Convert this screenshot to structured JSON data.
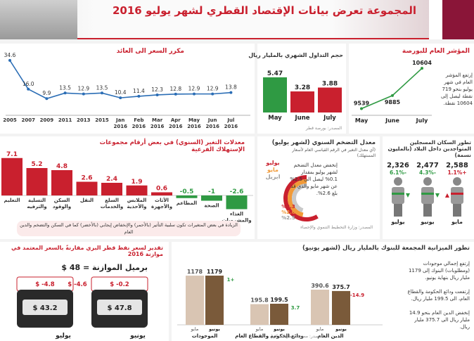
{
  "header": {
    "title": "المجموعة تعرض بيانات الإقتصاد القطري لشهر يوليو 2016"
  },
  "pe": {
    "title": "مكرر السعر الى العائد",
    "points": [
      {
        "x": "2005",
        "y": null
      },
      {
        "x": "2007",
        "y": 34.6
      },
      {
        "x": "2009",
        "y": 16.0
      },
      {
        "x": "2011",
        "y": 9.9
      },
      {
        "x": "2013",
        "y": 13.5
      },
      {
        "x": "2015",
        "y": 12.9
      },
      {
        "x": "Jan 2016",
        "y": 13.5
      },
      {
        "x": "Feb 2016",
        "y": 10.4
      },
      {
        "x": "Mar 2016",
        "y": 11.4
      },
      {
        "x": "Apr 2016",
        "y": 12.3
      },
      {
        "x": "May 2016",
        "y": 12.8
      },
      {
        "x": "Jun 2016",
        "y": 12.9
      },
      {
        "x": "Jul 2016",
        "y": 12.9
      },
      {
        "x": "",
        "y": 13.8
      }
    ],
    "xlabels": [
      "2005",
      "2007",
      "2009",
      "2011",
      "2013",
      "2015",
      "Jan\n2016",
      "Feb\n2016",
      "Mar\n2016",
      "Apr\n2016",
      "May\n2016",
      "Jun\n2016",
      "Jul\n2016"
    ],
    "labels": [
      "34.6",
      "16.0",
      "9.9",
      "13.5",
      "12.9",
      "13.5",
      "10.4",
      "11.4",
      "12.3",
      "12.8",
      "12.9",
      "12.9",
      "13.8"
    ]
  },
  "volume": {
    "title": "حجم التداول الشهري بالمليار ريال",
    "source": "المصدر: بورصة قطر",
    "bars": [
      {
        "label": "May",
        "value": 5.47,
        "color": "#2f9a43"
      },
      {
        "label": "June",
        "value": 3.28,
        "color": "#c9202e"
      },
      {
        "label": "July",
        "value": 3.88,
        "color": "#c9202e"
      }
    ]
  },
  "index": {
    "title": "المؤشر العام للبورصة",
    "points": [
      {
        "label": "May",
        "value": 9539
      },
      {
        "label": "June",
        "value": 9885
      },
      {
        "label": "July",
        "value": 10604
      }
    ],
    "text": "إرتفع المؤشر العام في شهر يوليو بنحو 719 نقطة ليصل إلى 10604 نقطة."
  },
  "cpi_changes": {
    "title": "معدلات التغير (السنوي) في بعض أرقام مجموعات الإستهلاك الفرعية",
    "bars": [
      {
        "label": "التعليم",
        "value": 7.1
      },
      {
        "label": "التسلية والترفيه",
        "value": 5.2
      },
      {
        "label": "السكن والوقود",
        "value": 4.8
      },
      {
        "label": "النقل",
        "value": 2.6
      },
      {
        "label": "السلع والخدمات",
        "value": 2.4
      },
      {
        "label": "الملابس والأحذية",
        "value": 1.9
      },
      {
        "label": "الأثاث والأجهزة",
        "value": 0.6
      },
      {
        "label": "المطاعم",
        "value": -0.5
      },
      {
        "label": "الصحة",
        "value": -1
      },
      {
        "label": "الغذاء والمشروبات",
        "value": -2.6
      }
    ],
    "note": "الزيادة في بعض المتغيرات تكون سلبية التأثير (بالأحمر) والإنخفاض إيجابي (بالأخضر) كما في السكن والتضخم والدين العام"
  },
  "inflation": {
    "title": "معدل التضخم السنوي (لشهر يوليو)",
    "subtitle": "(أي معدل التغير في الرقم القياسي العام لأسعار المستهلك)",
    "legend": [
      "يوليو",
      "مايو",
      "ابريل"
    ],
    "values": [
      "%3.3",
      "%2.6",
      "%2.5"
    ],
    "text": "إنخفض معدل التضخم لشهر يوليو بمقدار 0.1% ليصل الى 2.5% عن شهر مايو والذي قد بلغ 2.6%.",
    "source": "المصدر: وزارة التخطيط التنموي والإحصاء"
  },
  "population": {
    "title": "تطور السكان المسجلين المتواجدين داخل البلاد (بالمليون نسمة)",
    "items": [
      {
        "label": "مايو",
        "value": "2,588",
        "change": "1.1%+",
        "arrow": "up",
        "color": "#c9202e"
      },
      {
        "label": "يونيو",
        "value": "2,477",
        "change": "4.3%-",
        "arrow": "down",
        "color": "#2f9a43"
      },
      {
        "label": "يوليو",
        "value": "2,326",
        "change": "6.1%-",
        "arrow": "down",
        "color": "#2f9a43"
      }
    ]
  },
  "budget": {
    "title": "تقدير لسعر نفط قطر البري مقارنةً بالسعر المعتمد في موازنة 2016",
    "price": "برميل الموازنة = 48 $",
    "barrels": [
      {
        "month": "يونيو",
        "diff_label": "$ -0.2",
        "value": "$ 47.8"
      },
      {
        "month": "يوليو",
        "diff_label": "$ -4.6",
        "diff_label2": "$ -4.8",
        "value": "$ 43.2"
      }
    ]
  },
  "banks": {
    "title": "تطور الميزانية المجمعة للبنوك بالمليار ريال (لشهر يونيو)",
    "groups": [
      {
        "name": "الموجودات",
        "prev": 1178,
        "curr": 1179,
        "change": "1+"
      },
      {
        "name": "ودائع الحكومة والقطاع العام",
        "prev": 195.8,
        "curr": 199.5,
        "change": "3.7"
      },
      {
        "name": "الدين العام",
        "prev": 390.6,
        "curr": 375.7,
        "change": "-14.9"
      }
    ],
    "prev_label": "مايو",
    "curr_label": "يونيو",
    "notes": [
      "إرتفع إجمالي موجودات (ومطلوبات) البنوك إلى 1179 مليار ريال بنهاية يونيو.",
      "إرتفعت ودائع الحكومة والقطاع العام، الى 199.5 مليار ريال.",
      "إنخفض الدين العام بنحو 14.9 مليار ريال الى 375.7 مليار ريال."
    ],
    "source": "المصدر: مصرف قطر المركزي"
  }
}
